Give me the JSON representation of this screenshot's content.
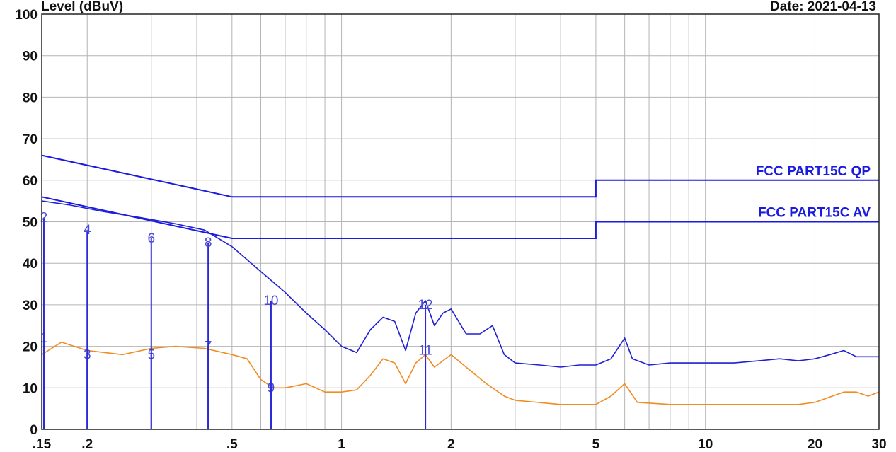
{
  "header": {
    "ylabel": "Level (dBuV)",
    "date_text": "Date: 2021-04-13"
  },
  "chart_data": {
    "type": "line",
    "xscale": "log",
    "xlim": [
      0.15,
      30
    ],
    "ylim": [
      0,
      100
    ],
    "grid": true,
    "xticks": [
      {
        "v": 0.15,
        "label": ".15"
      },
      {
        "v": 0.2,
        "label": ".2"
      },
      {
        "v": 0.5,
        "label": ".5"
      },
      {
        "v": 1,
        "label": "1"
      },
      {
        "v": 2,
        "label": "2"
      },
      {
        "v": 5,
        "label": "5"
      },
      {
        "v": 10,
        "label": "10"
      },
      {
        "v": 20,
        "label": "20"
      },
      {
        "v": 30,
        "label": "30"
      }
    ],
    "yticks": [
      0,
      10,
      20,
      30,
      40,
      50,
      60,
      70,
      80,
      90,
      100
    ],
    "limits": [
      {
        "name": "FCC PART15C QP",
        "color": "#1a1ae0",
        "points": [
          [
            0.15,
            66
          ],
          [
            0.5,
            56
          ],
          [
            5,
            56
          ],
          [
            5,
            60
          ],
          [
            30,
            60
          ]
        ]
      },
      {
        "name": "FCC PART15C AV",
        "color": "#1a1ae0",
        "points": [
          [
            0.15,
            56
          ],
          [
            0.5,
            46
          ],
          [
            5,
            46
          ],
          [
            5,
            50
          ],
          [
            30,
            50
          ]
        ]
      }
    ],
    "series": [
      {
        "color": "#1f1fd6",
        "points": [
          [
            0.15,
            55
          ],
          [
            0.18,
            54
          ],
          [
            0.22,
            52.5
          ],
          [
            0.28,
            51
          ],
          [
            0.35,
            49.5
          ],
          [
            0.42,
            48
          ],
          [
            0.5,
            44
          ],
          [
            0.6,
            38
          ],
          [
            0.7,
            33
          ],
          [
            0.8,
            28
          ],
          [
            0.9,
            24
          ],
          [
            1.0,
            20
          ],
          [
            1.1,
            18.5
          ],
          [
            1.2,
            24
          ],
          [
            1.3,
            27
          ],
          [
            1.4,
            26
          ],
          [
            1.5,
            19
          ],
          [
            1.6,
            28
          ],
          [
            1.7,
            31
          ],
          [
            1.8,
            25
          ],
          [
            1.9,
            28
          ],
          [
            2.0,
            29
          ],
          [
            2.2,
            23
          ],
          [
            2.4,
            23
          ],
          [
            2.6,
            25
          ],
          [
            2.8,
            18
          ],
          [
            3.0,
            16
          ],
          [
            3.5,
            15.5
          ],
          [
            4.0,
            15
          ],
          [
            4.5,
            15.5
          ],
          [
            5.0,
            15.5
          ],
          [
            5.5,
            17
          ],
          [
            6.0,
            22
          ],
          [
            6.3,
            17
          ],
          [
            7.0,
            15.5
          ],
          [
            8,
            16
          ],
          [
            10,
            16
          ],
          [
            12,
            16
          ],
          [
            14,
            16.5
          ],
          [
            16,
            17
          ],
          [
            18,
            16.5
          ],
          [
            20,
            17
          ],
          [
            22,
            18
          ],
          [
            24,
            19
          ],
          [
            26,
            17.5
          ],
          [
            28,
            17.5
          ],
          [
            30,
            17.5
          ]
        ]
      },
      {
        "color": "#f08c22",
        "points": [
          [
            0.15,
            18
          ],
          [
            0.17,
            21
          ],
          [
            0.2,
            19
          ],
          [
            0.25,
            18
          ],
          [
            0.3,
            19.5
          ],
          [
            0.35,
            20
          ],
          [
            0.42,
            19.5
          ],
          [
            0.5,
            18
          ],
          [
            0.55,
            17
          ],
          [
            0.6,
            12
          ],
          [
            0.65,
            10
          ],
          [
            0.7,
            10
          ],
          [
            0.8,
            11
          ],
          [
            0.9,
            9
          ],
          [
            1.0,
            9
          ],
          [
            1.1,
            9.5
          ],
          [
            1.2,
            13
          ],
          [
            1.3,
            17
          ],
          [
            1.4,
            16
          ],
          [
            1.5,
            11
          ],
          [
            1.6,
            16
          ],
          [
            1.7,
            18
          ],
          [
            1.8,
            15
          ],
          [
            2.0,
            18
          ],
          [
            2.2,
            15
          ],
          [
            2.5,
            11
          ],
          [
            2.8,
            8
          ],
          [
            3.0,
            7
          ],
          [
            4.0,
            6
          ],
          [
            5.0,
            6
          ],
          [
            5.5,
            8
          ],
          [
            6.0,
            11
          ],
          [
            6.5,
            6.5
          ],
          [
            8,
            6
          ],
          [
            10,
            6
          ],
          [
            12,
            6
          ],
          [
            15,
            6
          ],
          [
            18,
            6
          ],
          [
            20,
            6.5
          ],
          [
            24,
            9
          ],
          [
            26,
            9
          ],
          [
            28,
            8
          ],
          [
            30,
            9
          ]
        ]
      }
    ],
    "markers": [
      {
        "label": "1",
        "f": 0.152,
        "level": 22
      },
      {
        "label": "2",
        "f": 0.152,
        "level": 51
      },
      {
        "label": "3",
        "f": 0.2,
        "level": 18
      },
      {
        "label": "4",
        "f": 0.2,
        "level": 48
      },
      {
        "label": "5",
        "f": 0.3,
        "level": 18
      },
      {
        "label": "6",
        "f": 0.3,
        "level": 46
      },
      {
        "label": "7",
        "f": 0.43,
        "level": 20
      },
      {
        "label": "8",
        "f": 0.43,
        "level": 45
      },
      {
        "label": "9",
        "f": 0.64,
        "level": 10
      },
      {
        "label": "10",
        "f": 0.64,
        "level": 31
      },
      {
        "label": "11",
        "f": 1.7,
        "level": 19
      },
      {
        "label": "12",
        "f": 1.7,
        "level": 30
      }
    ]
  }
}
